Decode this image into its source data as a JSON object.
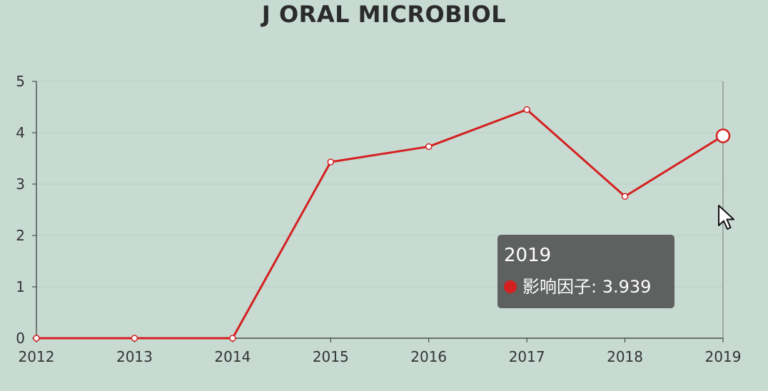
{
  "chart_data": {
    "type": "line",
    "title": "J ORAL MICROBIOL",
    "x": [
      "2012",
      "2013",
      "2014",
      "2015",
      "2016",
      "2017",
      "2018",
      "2019"
    ],
    "ylim": [
      0,
      5
    ],
    "yticks": [
      "0",
      "1",
      "2",
      "3",
      "4",
      "5"
    ],
    "series": [
      {
        "name": "影响因子",
        "values": [
          0,
          0,
          0,
          3.43,
          3.73,
          4.45,
          2.76,
          3.939
        ]
      }
    ],
    "grid": true,
    "line_color": "#d42020"
  },
  "tooltip": {
    "title": "2019",
    "label": "影响因子: 3.939",
    "dot_color": "#d42020"
  },
  "cursor": {
    "icon": "pointer-arrow-icon"
  }
}
